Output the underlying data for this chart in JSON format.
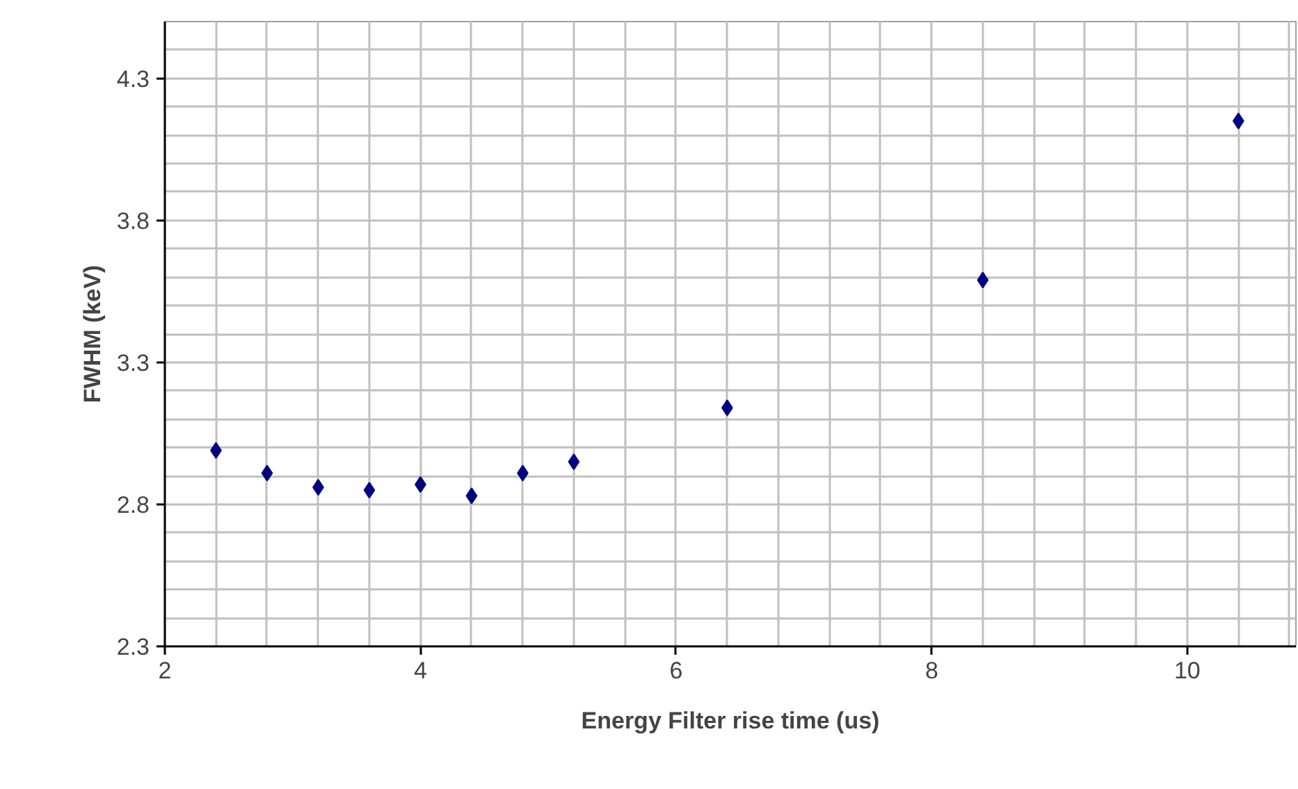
{
  "chart_data": {
    "type": "scatter",
    "xlabel": "Energy Filter rise time (us)",
    "ylabel": "FWHM (keV)",
    "x": [
      2.4,
      2.8,
      3.2,
      3.6,
      4.0,
      4.4,
      4.8,
      5.2,
      6.4,
      8.4,
      10.4
    ],
    "series": [
      {
        "color": "#000080",
        "values": [
          2.99,
          2.91,
          2.86,
          2.85,
          2.87,
          2.83,
          2.91,
          2.95,
          3.14,
          3.59,
          4.15
        ]
      }
    ],
    "xlim": [
      2,
      10.85
    ],
    "xticks": [
      2,
      4,
      6,
      8,
      10
    ],
    "ylim": [
      2.3,
      4.5
    ],
    "yticks": [
      2.3,
      2.8,
      3.3,
      3.8,
      4.3
    ],
    "grid": true,
    "marker": "diamond"
  }
}
